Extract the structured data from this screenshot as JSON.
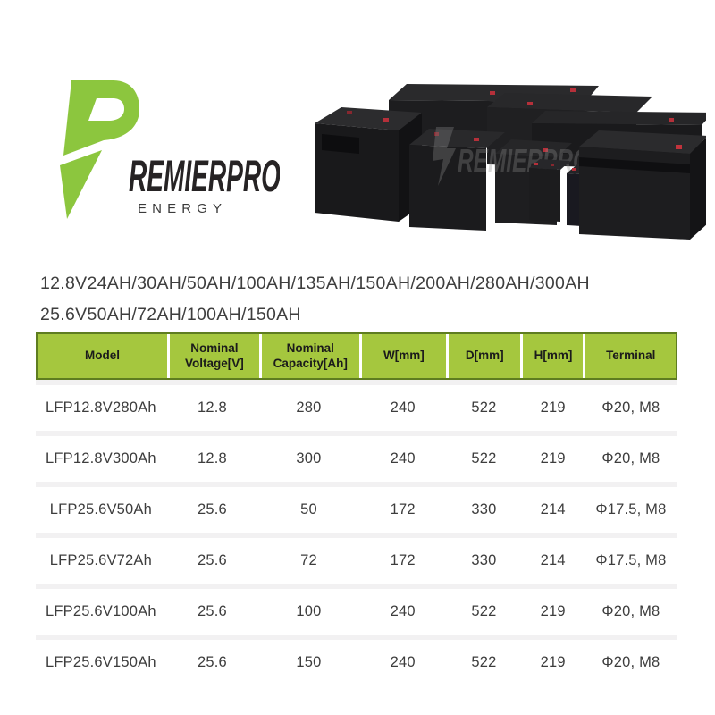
{
  "logo": {
    "name": "REMIERPRO",
    "tagline": "ENERGY",
    "green": "#8cc63e",
    "dark": "#262324"
  },
  "product_image": {
    "watermark": "REMIERPRO",
    "terminal_color": "#c2333c"
  },
  "spec_summary": {
    "line1": "12.8V24AH/30AH/50AH/100AH/135AH/150AH/200AH/280AH/300AH",
    "line2": "25.6V50AH/72AH/100AH/150AH"
  },
  "table": {
    "header_bg": "#a5c73e",
    "header_border": "#5e7d20",
    "columns": [
      "Model",
      "Nominal Voltage[V]",
      "Nominal Capacity[Ah]",
      "W[mm]",
      "D[mm]",
      "H[mm]",
      "Terminal"
    ],
    "rows": [
      [
        "LFP12.8V280Ah",
        "12.8",
        "280",
        "240",
        "522",
        "219",
        "Φ20, M8"
      ],
      [
        "LFP12.8V300Ah",
        "12.8",
        "300",
        "240",
        "522",
        "219",
        "Φ20, M8"
      ],
      [
        "LFP25.6V50Ah",
        "25.6",
        "50",
        "172",
        "330",
        "214",
        "Φ17.5, M8"
      ],
      [
        "LFP25.6V72Ah",
        "25.6",
        "72",
        "172",
        "330",
        "214",
        "Φ17.5, M8"
      ],
      [
        "LFP25.6V100Ah",
        "25.6",
        "100",
        "240",
        "522",
        "219",
        "Φ20, M8"
      ],
      [
        "LFP25.6V150Ah",
        "25.6",
        "150",
        "240",
        "522",
        "219",
        "Φ20, M8"
      ]
    ]
  }
}
